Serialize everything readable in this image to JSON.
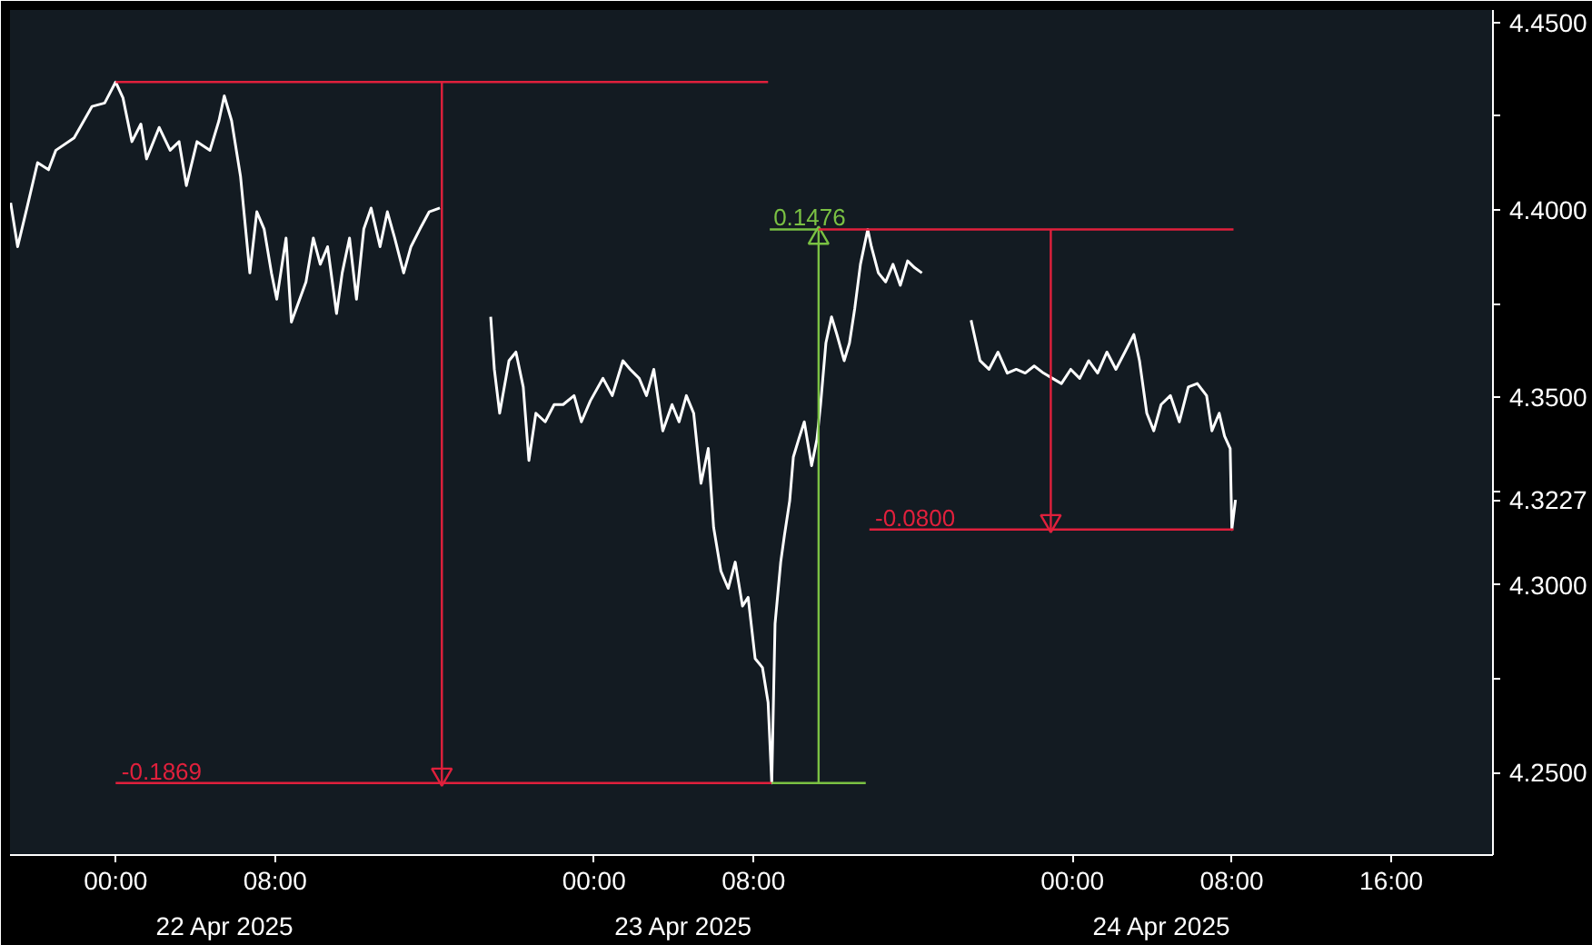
{
  "chart_data": {
    "type": "line",
    "xlim": [
      "2025-04-21T18:42",
      "2025-04-24T21:06"
    ],
    "ylim": [
      4.228,
      4.4533
    ],
    "xticks": [
      {
        "value": "2025-04-22T00:00",
        "label": "00:00"
      },
      {
        "value": "2025-04-22T08:00",
        "label": "08:00"
      },
      {
        "value": "2025-04-23T00:00",
        "label": "00:00"
      },
      {
        "value": "2025-04-23T08:00",
        "label": "08:00"
      },
      {
        "value": "2025-04-24T00:00",
        "label": "00:00"
      },
      {
        "value": "2025-04-24T08:00",
        "label": "08:00"
      },
      {
        "value": "2025-04-24T16:00",
        "label": "16:00"
      }
    ],
    "x2lim": [
      "2025-04-21T18:42",
      "2025-04-24T21:06"
    ],
    "x2ticks": [
      {
        "value": "2025-04-22T05:30",
        "label": "22 Apr 2025"
      },
      {
        "value": "2025-04-23T04:30",
        "label": "23 Apr 2025"
      },
      {
        "value": "2025-04-24T04:30",
        "label": "24 Apr 2025"
      }
    ],
    "yticks": [
      {
        "value": 4.25,
        "label": "4.2500"
      },
      {
        "value": 4.275,
        "label": null
      },
      {
        "value": 4.3,
        "label": "4.3000"
      },
      {
        "value": 4.3227,
        "label": "4.3227"
      },
      {
        "value": 4.325,
        "label": null
      },
      {
        "value": 4.35,
        "label": "4.3500"
      },
      {
        "value": 4.375,
        "label": null
      },
      {
        "value": 4.4,
        "label": "4.4000"
      },
      {
        "value": 4.425,
        "label": null
      },
      {
        "value": 4.45,
        "label": "4.4500"
      }
    ],
    "series": [
      {
        "color": "#ffffff",
        "x": [
          "2025-04-21T18:44",
          "2025-04-21T19:05",
          "2025-04-21T19:33",
          "2025-04-21T20:05",
          "2025-04-21T20:38",
          "2025-04-21T21:00",
          "2025-04-21T21:55",
          "2025-04-21T22:49",
          "2025-04-21T23:27",
          "2025-04-22T00:00",
          "2025-04-22T00:22",
          "2025-04-22T00:49",
          "2025-04-22T01:16",
          "2025-04-22T01:33",
          "2025-04-22T02:11",
          "2025-04-22T02:44",
          "2025-04-22T03:11",
          "2025-04-22T03:33",
          "2025-04-22T04:05",
          "2025-04-22T04:44",
          "2025-04-22T05:11",
          "2025-04-22T05:27",
          "2025-04-22T05:49",
          "2025-04-22T06:16",
          "2025-04-22T06:44",
          "2025-04-22T07:05",
          "2025-04-22T07:27",
          "2025-04-22T07:49",
          "2025-04-22T08:05",
          "2025-04-22T08:33",
          "2025-04-22T08:49",
          "2025-04-22T09:33",
          "2025-04-22T09:55",
          "2025-04-22T10:16",
          "2025-04-22T10:38",
          "2025-04-22T11:05",
          "2025-04-22T11:22",
          "2025-04-22T11:44",
          "2025-04-22T12:05",
          "2025-04-22T12:27",
          "2025-04-22T12:49",
          "2025-04-22T13:16",
          "2025-04-22T13:38",
          "2025-04-22T14:00",
          "2025-04-22T14:27",
          "2025-04-22T14:49",
          "2025-04-22T15:16",
          "2025-04-22T15:44",
          "2025-04-22T16:16",
          "2025-04-22T17:00",
          "2025-04-22T18:49",
          "2025-04-22T19:00",
          "2025-04-22T19:16",
          "2025-04-22T19:44",
          "2025-04-22T20:05",
          "2025-04-22T20:27",
          "2025-04-22T20:44",
          "2025-04-22T21:05",
          "2025-04-22T21:33",
          "2025-04-22T22:00",
          "2025-04-22T22:27",
          "2025-04-22T23:00",
          "2025-04-22T23:22",
          "2025-04-22T23:49",
          "2025-04-23T00:27",
          "2025-04-23T00:55",
          "2025-04-23T01:27",
          "2025-04-23T01:49",
          "2025-04-23T02:16",
          "2025-04-23T02:38",
          "2025-04-23T03:00",
          "2025-04-23T03:27",
          "2025-04-23T03:55",
          "2025-04-23T04:16",
          "2025-04-23T04:38",
          "2025-04-23T05:00",
          "2025-04-23T05:22",
          "2025-04-23T05:44",
          "2025-04-23T06:00",
          "2025-04-23T06:22",
          "2025-04-23T06:44",
          "2025-04-23T07:05",
          "2025-04-23T07:27",
          "2025-04-23T07:44",
          "2025-04-23T08:05",
          "2025-04-23T08:27",
          "2025-04-23T08:44",
          "2025-04-23T08:55",
          "2025-04-23T09:05",
          "2025-04-23T09:22",
          "2025-04-23T09:33",
          "2025-04-23T09:49",
          "2025-04-23T10:00",
          "2025-04-23T10:16",
          "2025-04-23T10:33",
          "2025-04-23T10:55",
          "2025-04-23T11:11",
          "2025-04-23T11:22",
          "2025-04-23T11:38",
          "2025-04-23T11:55",
          "2025-04-23T12:11",
          "2025-04-23T12:33",
          "2025-04-23T12:49",
          "2025-04-23T13:05",
          "2025-04-23T13:22",
          "2025-04-23T13:44",
          "2025-04-23T13:55",
          "2025-04-23T14:16",
          "2025-04-23T14:38",
          "2025-04-23T15:00",
          "2025-04-23T15:22",
          "2025-04-23T15:44",
          "2025-04-23T16:05",
          "2025-04-23T16:27",
          "2025-04-23T17:30",
          "2025-04-23T18:55",
          "2025-04-23T19:22",
          "2025-04-23T19:49",
          "2025-04-23T20:16",
          "2025-04-23T20:44",
          "2025-04-23T21:11",
          "2025-04-23T21:38",
          "2025-04-23T22:05",
          "2025-04-23T22:33",
          "2025-04-23T23:00",
          "2025-04-23T23:27",
          "2025-04-23T23:55",
          "2025-04-24T00:22",
          "2025-04-24T00:49",
          "2025-04-24T01:16",
          "2025-04-24T01:44",
          "2025-04-24T02:11",
          "2025-04-24T02:38",
          "2025-04-24T03:05",
          "2025-04-24T03:22",
          "2025-04-24T03:44",
          "2025-04-24T04:05",
          "2025-04-24T04:27",
          "2025-04-24T04:55",
          "2025-04-24T05:22",
          "2025-04-24T05:49",
          "2025-04-24T06:16",
          "2025-04-24T06:44",
          "2025-04-24T07:00",
          "2025-04-24T07:22",
          "2025-04-24T07:38",
          "2025-04-24T07:55",
          "2025-04-24T08:00",
          "2025-04-24T08:11"
        ],
        "values": [
          4.4019,
          4.3902,
          4.4005,
          4.4126,
          4.4107,
          4.4159,
          4.4192,
          4.4276,
          4.4285,
          4.4341,
          4.4299,
          4.4182,
          4.4229,
          4.4136,
          4.422,
          4.4159,
          4.4182,
          4.4065,
          4.4182,
          4.4159,
          4.4238,
          4.4304,
          4.4238,
          4.4089,
          4.3832,
          4.3995,
          4.3949,
          4.3832,
          4.3762,
          4.3925,
          4.3701,
          4.3808,
          4.3925,
          4.3855,
          4.3902,
          4.3724,
          4.3832,
          4.3925,
          4.3762,
          4.3949,
          4.4005,
          4.3902,
          4.3995,
          4.3925,
          4.3832,
          4.3902,
          4.3949,
          4.3995,
          4.4005,
          null,
          4.3715,
          4.3575,
          4.3458,
          4.3598,
          4.3621,
          4.3528,
          4.3332,
          4.3458,
          4.3435,
          4.3481,
          4.3481,
          4.3505,
          4.3435,
          4.3491,
          4.3551,
          4.3505,
          4.3598,
          4.3575,
          4.3551,
          4.3505,
          4.3575,
          4.3411,
          4.3481,
          4.3435,
          4.3505,
          4.3458,
          4.3271,
          4.3364,
          4.3154,
          4.3037,
          4.2991,
          4.3061,
          4.2944,
          4.2967,
          4.2804,
          4.278,
          4.2687,
          4.2472,
          4.2897,
          4.3061,
          4.3131,
          4.3224,
          4.3341,
          4.3388,
          4.3435,
          4.3318,
          4.3388,
          4.3481,
          4.3645,
          4.3715,
          4.3668,
          4.3598,
          4.3645,
          4.3738,
          4.3855,
          4.3948,
          4.3902,
          4.3832,
          4.3808,
          4.3855,
          4.3799,
          4.3864,
          4.3846,
          4.3832,
          null,
          4.3706,
          4.3598,
          4.3575,
          4.3621,
          4.3565,
          4.3575,
          4.3565,
          4.3584,
          4.3565,
          4.3551,
          4.3537,
          4.3575,
          4.3551,
          4.3598,
          4.3565,
          4.3621,
          4.3575,
          4.3621,
          4.3668,
          4.3598,
          4.3458,
          4.3411,
          4.3481,
          4.3505,
          4.3435,
          4.3528,
          4.3537,
          4.3505,
          4.3411,
          4.3458,
          4.3397,
          4.3364,
          4.3148,
          4.3227
        ]
      },
      {
        "color": "#e0203c",
        "x": [
          "2025-04-22T00:00",
          "2025-04-23T08:44",
          null,
          "2025-04-22T00:00",
          "2025-04-23T08:55",
          null,
          "2025-04-22T16:22",
          "2025-04-22T16:22"
        ],
        "values": [
          4.4341,
          4.4341,
          null,
          4.2472,
          4.2472,
          null,
          4.4341,
          4.2472
        ]
      },
      {
        "type": "scatter",
        "marker": "triangle",
        "color": "#e0203c",
        "x": [
          "2025-04-22T16:22"
        ],
        "values": [
          4.2495
        ]
      },
      {
        "color": "#7ac143",
        "x": [
          "2025-04-23T08:55",
          "2025-04-23T13:38",
          null,
          "2025-04-23T08:49",
          "2025-04-23T11:16",
          null,
          "2025-04-23T11:16",
          "2025-04-23T11:16"
        ],
        "values": [
          4.2472,
          4.2472,
          null,
          4.3948,
          4.3948,
          null,
          4.2472,
          4.3948
        ]
      },
      {
        "type": "scatter",
        "marker": "triangle",
        "color": "#7ac143",
        "x": [
          "2025-04-23T11:16"
        ],
        "values": [
          4.3925
        ]
      },
      {
        "color": "#e0203c",
        "x": [
          "2025-04-23T11:16",
          "2025-04-24T08:05",
          null,
          "2025-04-23T13:49",
          "2025-04-24T08:05",
          null,
          "2025-04-23T22:55",
          "2025-04-23T22:55"
        ],
        "values": [
          4.3948,
          4.3948,
          null,
          4.3148,
          4.3148,
          null,
          4.3948,
          4.3148
        ]
      },
      {
        "type": "scatter",
        "marker": "triangle",
        "color": "#e0203c",
        "x": [
          "2025-04-23T22:55"
        ],
        "values": [
          4.3171
        ]
      }
    ],
    "annotations": [
      {
        "text": "-0.1869",
        "x": "2025-04-22T00:18",
        "y": 4.2472
      },
      {
        "text": "0.1476",
        "x": "2025-04-23T09:00",
        "y": 4.3948
      },
      {
        "text": "-0.0800",
        "x": "2025-04-23T14:06",
        "y": 4.3148
      }
    ]
  }
}
